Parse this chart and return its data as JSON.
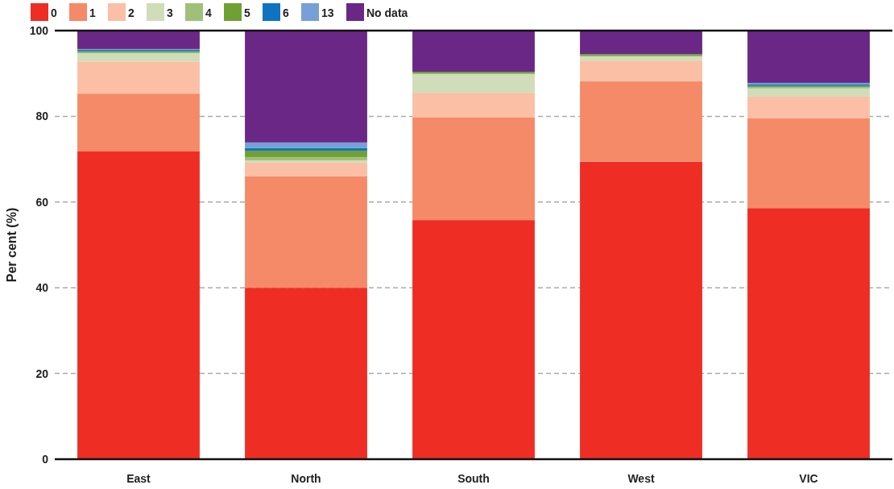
{
  "chart_data": {
    "type": "bar",
    "stacked": true,
    "ylabel": "Per cent (%)",
    "categories": [
      "East",
      "North",
      "South",
      "West",
      "VIC"
    ],
    "series": [
      {
        "name": "0",
        "color": "#ee2e24",
        "values": [
          71.8,
          40.0,
          55.8,
          69.4,
          58.6
        ]
      },
      {
        "name": "1",
        "color": "#f58a68",
        "values": [
          13.5,
          26.0,
          23.9,
          18.8,
          21.0
        ]
      },
      {
        "name": "2",
        "color": "#fbbfa5",
        "values": [
          7.5,
          3.2,
          5.8,
          4.8,
          5.0
        ]
      },
      {
        "name": "3",
        "color": "#d0ddb8",
        "values": [
          1.9,
          0.5,
          4.3,
          0.9,
          1.9
        ]
      },
      {
        "name": "4",
        "color": "#a0c07a",
        "values": [
          0.2,
          0.8,
          0.2,
          0.2,
          0.3
        ]
      },
      {
        "name": "5",
        "color": "#70a035",
        "values": [
          0.3,
          1.5,
          0.4,
          0.4,
          0.3
        ]
      },
      {
        "name": "6",
        "color": "#0e74c0",
        "values": [
          0.3,
          0.6,
          0,
          0,
          0.3
        ]
      },
      {
        "name": "13",
        "color": "#76a0d6",
        "values": [
          0.2,
          1.3,
          0,
          0,
          0.4
        ]
      },
      {
        "name": "No data",
        "color": "#6a2785",
        "values": [
          4.3,
          26.1,
          9.6,
          5.5,
          12.2
        ]
      }
    ],
    "ylim": [
      0,
      100
    ],
    "yticks": [
      0,
      20,
      40,
      60,
      80,
      100
    ],
    "grid": "y",
    "legend": "top left"
  }
}
